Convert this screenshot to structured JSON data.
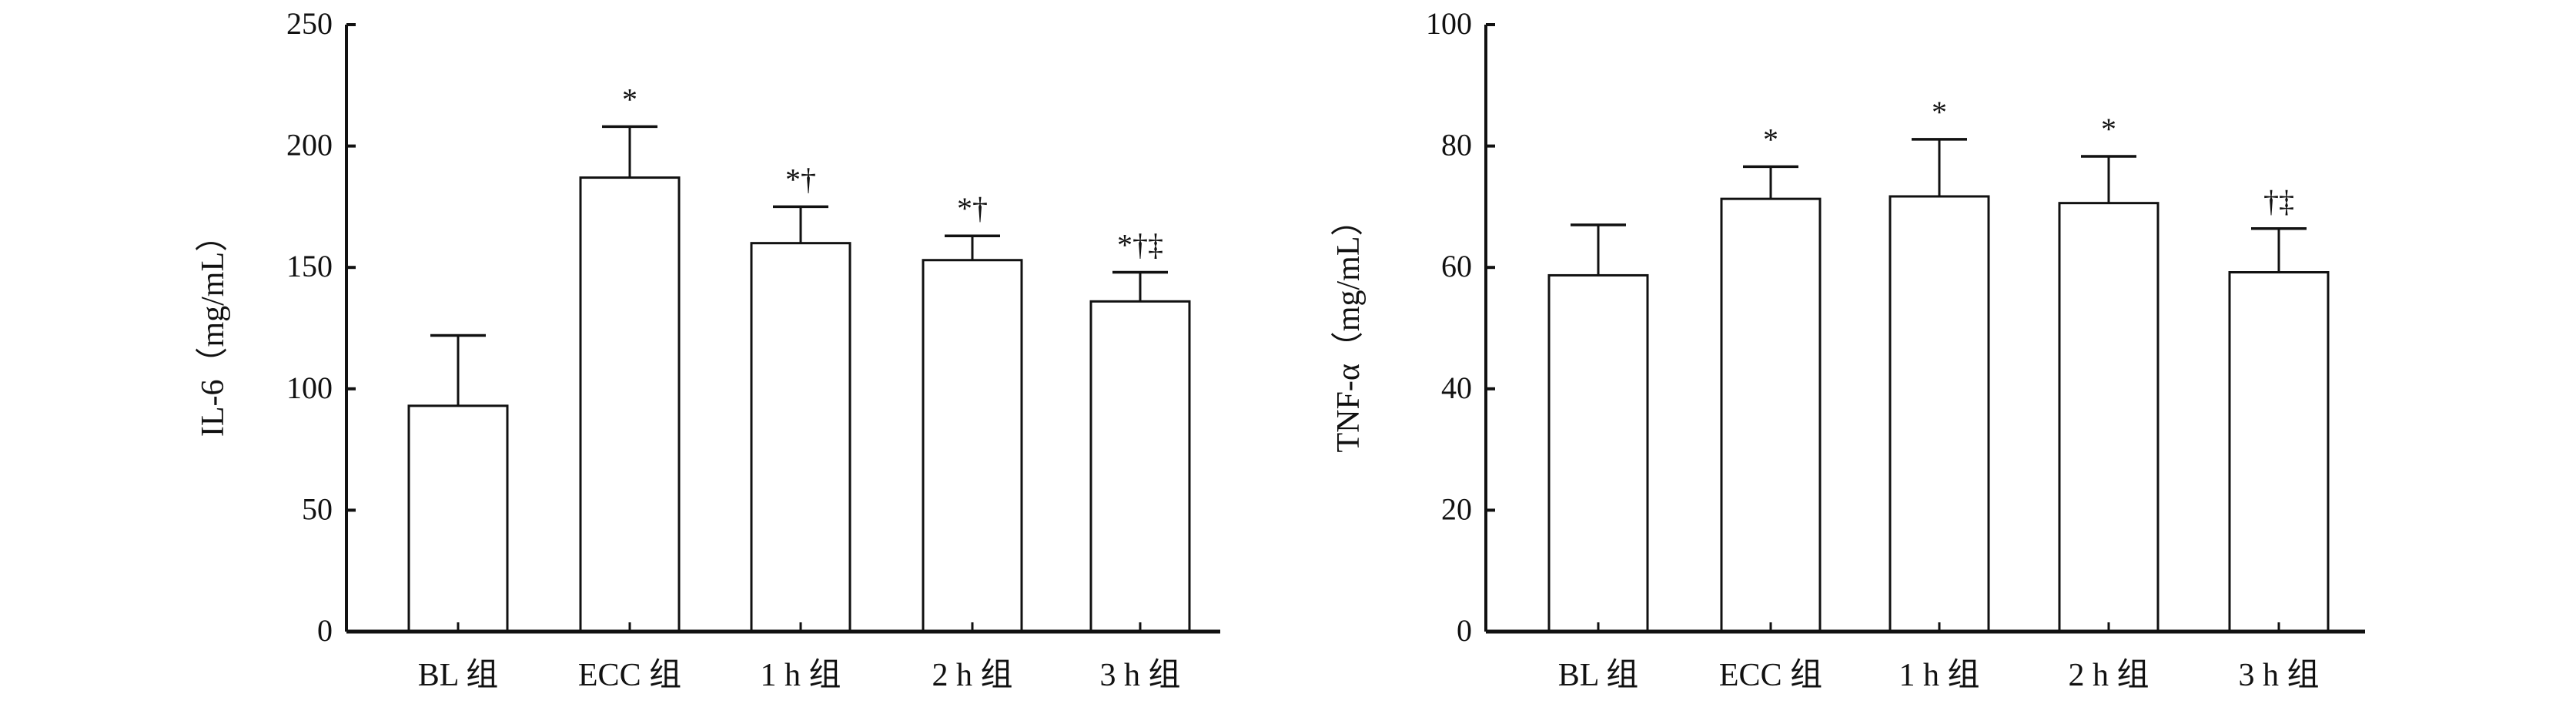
{
  "chart_data": [
    {
      "type": "bar",
      "title": "",
      "xlabel": "",
      "ylabel": "IL-6（mg/mL）",
      "ylim": [
        0,
        250
      ],
      "yticks": [
        0,
        50,
        100,
        150,
        200,
        250
      ],
      "grid": false,
      "categories": [
        "BL 组",
        "ECC 组",
        "1 h 组",
        "2 h 组",
        "3 h 组"
      ],
      "values": [
        93,
        187,
        160,
        153,
        136
      ],
      "error_upper": [
        122,
        208,
        175,
        163,
        148
      ],
      "annotations": [
        "",
        "*",
        "*†",
        "*†",
        "*†‡"
      ]
    },
    {
      "type": "bar",
      "title": "",
      "xlabel": "",
      "ylabel": "TNF-α（mg/mL）",
      "ylim": [
        0,
        100
      ],
      "yticks": [
        0,
        20,
        40,
        60,
        80,
        100
      ],
      "grid": false,
      "categories": [
        "BL 组",
        "ECC 组",
        "1 h 组",
        "2 h 组",
        "3 h 组"
      ],
      "values": [
        58.7,
        71.3,
        71.7,
        70.6,
        59.2
      ],
      "error_upper": [
        67,
        76.6,
        81.1,
        78.3,
        66.4
      ],
      "annotations": [
        "",
        "*",
        "*",
        "*",
        "†‡"
      ]
    }
  ]
}
